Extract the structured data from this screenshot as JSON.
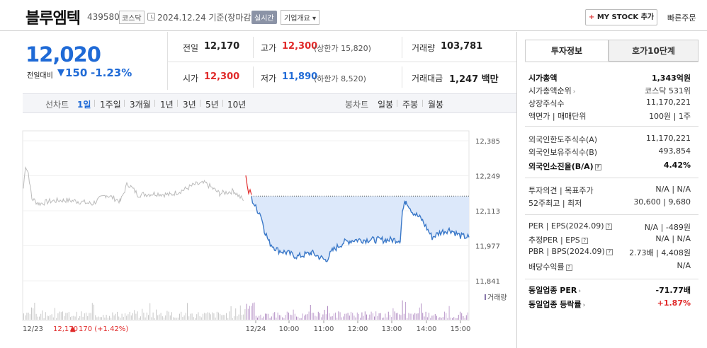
{
  "header": {
    "name": "블루엠텍",
    "code": "439580",
    "market": "코스닥",
    "date": "2024.12.24  기준(장마감)",
    "realtime": "실시간",
    "company_info": "기업개요",
    "mystock": "MY STOCK 추가",
    "quick_order": "빠른주문"
  },
  "price": {
    "current": "12,020",
    "prev_label": "전일대비",
    "change": "150",
    "change_pct": "-1.23%"
  },
  "summary": {
    "prev_close_label": "전일",
    "prev_close": "12,170",
    "high_label": "고가",
    "high": "12,300",
    "upper_limit": "(상한가 15,820)",
    "volume_label": "거래량",
    "volume": "103,781",
    "open_label": "시가",
    "open": "12,300",
    "low_label": "저가",
    "low": "11,890",
    "lower_limit": "(하한가 8,520)",
    "amount_label": "거래대금",
    "amount": "1,247 백만"
  },
  "tabs": {
    "line_label": "선차트",
    "line_tabs": [
      "1일",
      "1주일",
      "3개월",
      "1년",
      "3년",
      "5년",
      "10년"
    ],
    "candle_label": "봉차트",
    "candle_tabs": [
      "일봉",
      "주봉",
      "월봉"
    ]
  },
  "chart_data": {
    "type": "line",
    "y_ticks": [
      "12,385",
      "12,249",
      "12,113",
      "11,977",
      "11,841"
    ],
    "ylim": [
      11841,
      12385
    ],
    "x_ticks": [
      "12/24",
      "10:00",
      "11:00",
      "12:00",
      "13:00",
      "14:00",
      "15:00"
    ],
    "prev_close_ref": 12170,
    "volume_label": "거래량",
    "bottom_date": "12/23",
    "bottom_prev": "12,170",
    "bottom_change": "170 (+1.42%)",
    "colors": {
      "today": "#3a78c8",
      "prev_day": "#bbbbbb",
      "fill": "#dce8fa",
      "up": "#e02a2a"
    }
  },
  "right": {
    "tab_invest": "투자정보",
    "tab_hoga": "호가10단계",
    "rows": [
      {
        "label": "시가총액",
        "value": "1,343억원"
      },
      {
        "label": "시가총액순위",
        "value": "코스닥 531위"
      },
      {
        "label": "상장주식수",
        "value": "11,170,221"
      },
      {
        "label": "액면가 | 매매단위",
        "value": "100원 | 1주"
      },
      {
        "label": "외국인한도주식수(A)",
        "value": "11,170,221"
      },
      {
        "label": "외국인보유주식수(B)",
        "value": "493,854"
      },
      {
        "label": "외국인소진율(B/A)",
        "value": "4.42%"
      },
      {
        "label": "투자의견 | 목표주가",
        "value": "N/A | N/A"
      },
      {
        "label": "52주최고 | 최저",
        "value": "30,600 | 9,680"
      },
      {
        "label": "PER | EPS(2024.09)",
        "value": "N/A | -489원"
      },
      {
        "label": "추정PER | EPS",
        "value": "N/A | N/A"
      },
      {
        "label": "PBR | BPS(2024.09)",
        "value": "2.73배 | 4,408원"
      },
      {
        "label": "배당수익률",
        "value": "N/A"
      },
      {
        "label": "동일업종 PER",
        "value": "-71.77배"
      },
      {
        "label": "동일업종 등락률",
        "value": "+1.87%"
      }
    ]
  }
}
